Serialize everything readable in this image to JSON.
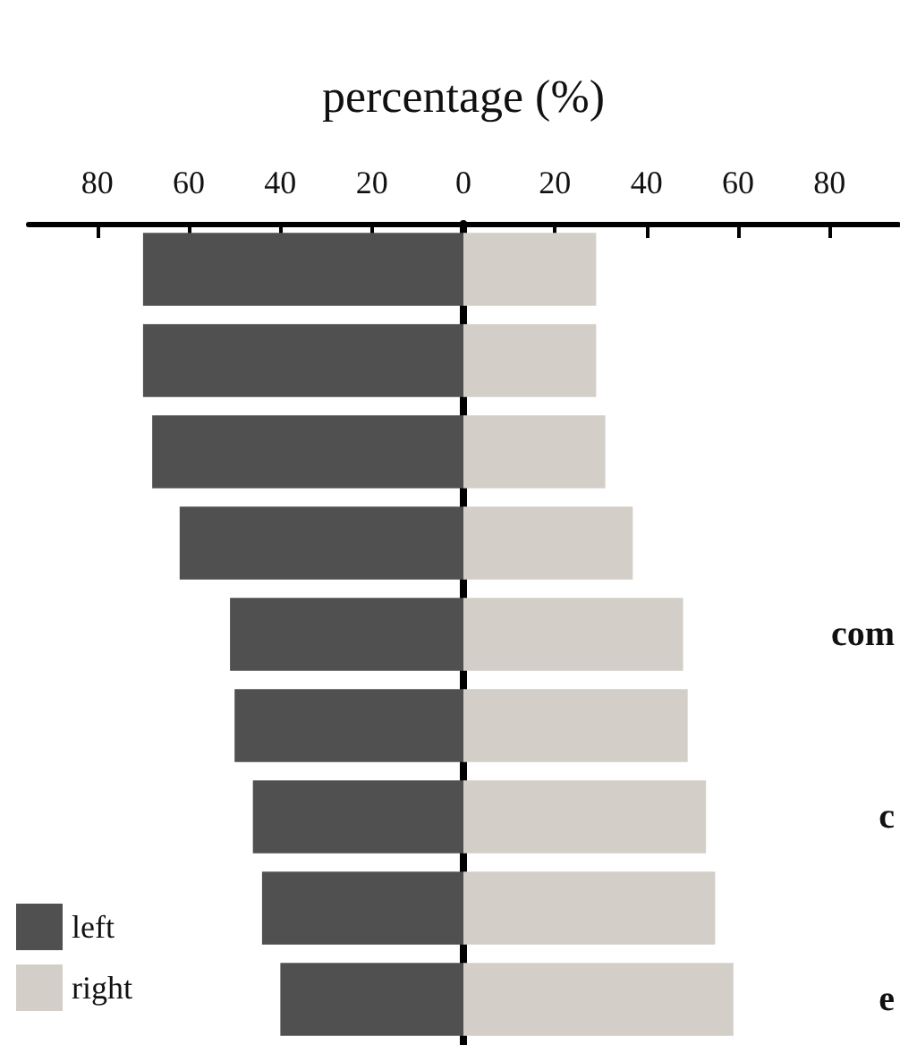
{
  "chart_data": {
    "type": "bar",
    "orientation": "horizontal",
    "xlabel": "percentage (%)",
    "categories": [
      null,
      null,
      null,
      null,
      "com",
      null,
      "c",
      null,
      "e"
    ],
    "series": [
      {
        "name": "left",
        "color": "#505050",
        "values": [
          -70,
          -70,
          -68,
          -62,
          -51,
          -50,
          -46,
          -44,
          -40
        ]
      },
      {
        "name": "right",
        "color": "#d3cfc8",
        "values": [
          29,
          29,
          31,
          37,
          48,
          49,
          53,
          55,
          59
        ]
      }
    ],
    "xlim": [
      -95,
      95
    ],
    "xticks": [
      {
        "value": -80,
        "label": "80"
      },
      {
        "value": -60,
        "label": "60"
      },
      {
        "value": -40,
        "label": "40"
      },
      {
        "value": -20,
        "label": "20"
      },
      0,
      20,
      40,
      60,
      80
    ],
    "stacked": true,
    "legend": "bottom left"
  }
}
